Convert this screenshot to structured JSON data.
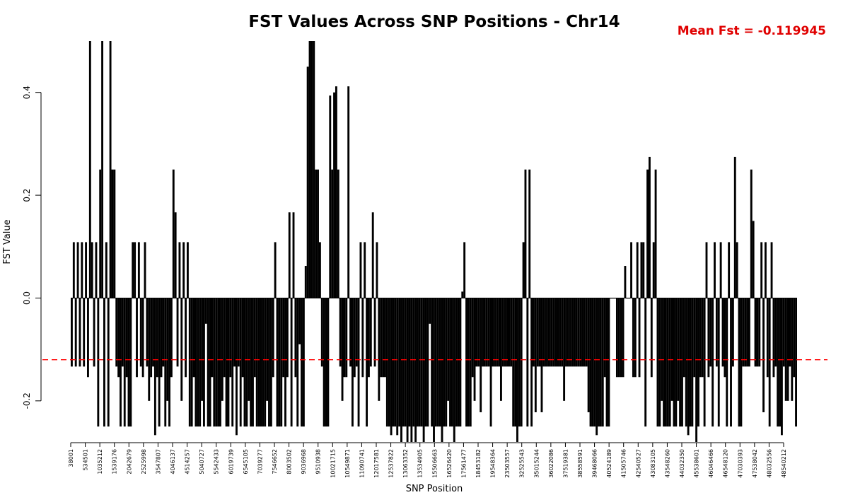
{
  "chart_data": {
    "type": "bar",
    "title": "FST Values Across SNP Positions - Chr14",
    "xlabel": "SNP Position",
    "ylabel": "FST Value",
    "annotation": "Mean Fst = -0.119945",
    "mean_value": -0.119945,
    "mean_line_color": "#ff0000",
    "ylim": [
      -0.28,
      0.5
    ],
    "yticks": [
      -0.2,
      0.0,
      0.2,
      0.4
    ],
    "ytick_labels": [
      "-0.2",
      "0.0",
      "0.2",
      "0.4"
    ],
    "grid": false,
    "bar_color": "#000000",
    "x_tick_labels": [
      "38001",
      "534501",
      "1035212",
      "1539176",
      "2042679",
      "2525998",
      "3547807",
      "4046137",
      "4514257",
      "5040727",
      "5542433",
      "6019739",
      "6545105",
      "7039277",
      "7546652",
      "8003502",
      "9036968",
      "9510938",
      "10021715",
      "10549871",
      "11090741",
      "12017581",
      "12537822",
      "13063352",
      "13534905",
      "15506663",
      "16526420",
      "17561477",
      "18453182",
      "19548364",
      "23503557",
      "32525543",
      "35015244",
      "36022086",
      "37519381",
      "38558591",
      "39468066",
      "40524189",
      "41505746",
      "42540527",
      "43083105",
      "43548260",
      "44032350",
      "45538601",
      "46046466",
      "46548120",
      "47030393",
      "47538042",
      "48032556",
      "48540212"
    ],
    "values": [
      -0.1333,
      0.1087,
      -0.1333,
      0.1087,
      -0.1333,
      0.1087,
      -0.1333,
      0.1087,
      -0.1538,
      0.5,
      0.1087,
      -0.1333,
      0.1087,
      -0.25,
      0.25,
      0.5,
      -0.25,
      0.1087,
      -0.25,
      0.5,
      0.25,
      0.25,
      -0.1333,
      -0.1538,
      -0.25,
      -0.1333,
      -0.25,
      -0.1538,
      -0.25,
      -0.25,
      0.1087,
      0.1087,
      -0.1538,
      0.1087,
      -0.1333,
      -0.1538,
      0.1087,
      -0.1333,
      -0.2,
      -0.1538,
      -0.1333,
      -0.2667,
      -0.1538,
      -0.25,
      -0.1538,
      -0.1333,
      -0.25,
      -0.2,
      -0.25,
      -0.1538,
      0.25,
      0.1667,
      -0.1333,
      0.1087,
      -0.2,
      0.1087,
      -0.1538,
      0.1087,
      -0.25,
      -0.25,
      -0.1538,
      -0.25,
      -0.25,
      -0.25,
      -0.2,
      -0.25,
      -0.05,
      -0.25,
      -0.25,
      -0.1538,
      -0.25,
      -0.25,
      -0.25,
      -0.25,
      -0.2,
      -0.1538,
      -0.25,
      -0.25,
      -0.1538,
      -0.25,
      -0.1333,
      -0.2667,
      -0.1333,
      -0.25,
      -0.1538,
      -0.25,
      -0.25,
      -0.2,
      -0.25,
      -0.25,
      -0.1538,
      -0.25,
      -0.25,
      -0.25,
      -0.25,
      -0.25,
      -0.2,
      -0.25,
      -0.25,
      -0.1538,
      0.1087,
      -0.25,
      -0.25,
      -0.25,
      -0.1538,
      -0.25,
      -0.1538,
      0.1667,
      -0.25,
      0.1667,
      -0.1538,
      -0.25,
      -0.09,
      -0.25,
      -0.25,
      0.0625,
      0.45,
      0.5,
      0.5,
      0.5,
      0.25,
      0.25,
      0.1087,
      -0.1333,
      -0.25,
      -0.25,
      -0.25,
      0.3939,
      0.25,
      0.4,
      0.4118,
      0.25,
      -0.1333,
      -0.2,
      -0.1538,
      -0.1538,
      0.4118,
      -0.1333,
      -0.25,
      -0.1538,
      -0.1333,
      -0.25,
      0.1087,
      -0.1538,
      0.1087,
      -0.25,
      -0.1538,
      -0.1333,
      0.1667,
      -0.1333,
      0.1087,
      -0.2,
      -0.1538,
      -0.1538,
      -0.1538,
      -0.25,
      -0.25,
      -0.2667,
      -0.25,
      -0.25,
      -0.2667,
      -0.25,
      -0.28,
      -0.25,
      -0.25,
      -0.28,
      -0.25,
      -0.28,
      -0.25,
      -0.28,
      -0.25,
      -0.25,
      -0.25,
      -0.28,
      -0.25,
      -0.25,
      -0.05,
      -0.25,
      -0.28,
      -0.25,
      -0.25,
      -0.25,
      -0.28,
      -0.25,
      -0.25,
      -0.2,
      -0.25,
      -0.25,
      -0.28,
      -0.25,
      -0.25,
      -0.25,
      0.0125,
      0.1087,
      -0.25,
      -0.25,
      -0.25,
      -0.1538,
      -0.2,
      -0.1333,
      -0.1333,
      -0.2222,
      -0.1333,
      -0.1333,
      -0.1333,
      -0.1333,
      -0.25,
      -0.1333,
      -0.1333,
      -0.1333,
      -0.1333,
      -0.2,
      -0.1333,
      -0.1333,
      -0.1333,
      -0.1333,
      -0.1333,
      -0.25,
      -0.25,
      -0.28,
      -0.25,
      -0.25,
      0.1087,
      0.25,
      -0.25,
      0.25,
      -0.25,
      -0.1333,
      -0.2222,
      -0.1333,
      -0.1333,
      -0.2222,
      -0.1333,
      -0.1333,
      -0.1333,
      -0.1333,
      -0.1333,
      -0.1333,
      -0.1333,
      -0.1333,
      -0.1333,
      -0.1333,
      -0.2,
      -0.1333,
      -0.1333,
      -0.1333,
      -0.1333,
      -0.1333,
      -0.1333,
      -0.1333,
      -0.1333,
      -0.1333,
      -0.1333,
      -0.1333,
      -0.2222,
      -0.25,
      -0.25,
      -0.25,
      -0.2667,
      -0.25,
      -0.25,
      -0.25,
      -0.1538,
      -0.25,
      -0.25,
      0.0,
      0.0,
      0.0,
      -0.1538,
      -0.1538,
      -0.1538,
      -0.1538,
      0.0625,
      0.0,
      0.0,
      0.1087,
      -0.1538,
      -0.1538,
      0.1087,
      -0.1538,
      0.1087,
      0.1087,
      -0.25,
      0.25,
      0.2745,
      -0.1538,
      0.1087,
      0.25,
      -0.25,
      -0.25,
      -0.2,
      -0.25,
      -0.25,
      -0.25,
      -0.25,
      -0.2,
      -0.25,
      -0.25,
      -0.2,
      -0.25,
      -0.25,
      -0.1538,
      -0.25,
      -0.2667,
      -0.25,
      -0.25,
      -0.1538,
      -0.28,
      -0.25,
      -0.1538,
      -0.1538,
      -0.25,
      0.1087,
      -0.1538,
      -0.1333,
      -0.25,
      0.1087,
      -0.1333,
      -0.25,
      0.1087,
      -0.1333,
      -0.1538,
      -0.25,
      0.1087,
      -0.25,
      -0.1333,
      0.2745,
      0.1087,
      -0.25,
      -0.25,
      -0.1333,
      -0.1333,
      -0.1333,
      -0.1333,
      0.25,
      0.15,
      -0.1333,
      -0.1333,
      -0.1333,
      0.1087,
      -0.2222,
      0.1087,
      -0.1538,
      -0.25,
      0.1087,
      -0.1538,
      -0.1333,
      -0.25,
      -0.25,
      -0.2667,
      -0.1333,
      -0.2,
      -0.2,
      -0.1333,
      -0.2,
      -0.1538,
      -0.25
    ]
  }
}
